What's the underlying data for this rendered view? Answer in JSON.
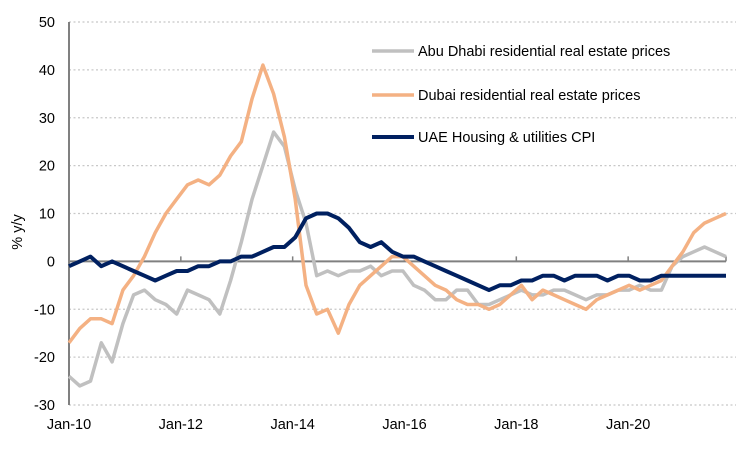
{
  "chart_data": {
    "type": "line",
    "title": "",
    "xlabel": "",
    "ylabel": "% y/y",
    "ylim": [
      -30,
      50
    ],
    "yticks": [
      -30,
      -20,
      -10,
      0,
      10,
      20,
      30,
      40,
      50
    ],
    "xlim": [
      2010.0,
      2021.75
    ],
    "xticks": [
      {
        "value": 2010,
        "label": "Jan-10"
      },
      {
        "value": 2012,
        "label": "Jan-12"
      },
      {
        "value": 2014,
        "label": "Jan-14"
      },
      {
        "value": 2016,
        "label": "Jan-16"
      },
      {
        "value": 2018,
        "label": "Jan-18"
      },
      {
        "value": 2020,
        "label": "Jan-20"
      }
    ],
    "grid": "horizontal-dotted",
    "legend_position": "top-right",
    "x_step_months": 2,
    "x_start": 2010.0,
    "series": [
      {
        "name": "Abu Dhabi residential real estate prices",
        "color": "#c0c0c0",
        "values": [
          -24,
          -26,
          -25,
          -17,
          -21,
          -13,
          -7,
          -6,
          -8,
          -9,
          -11,
          -6,
          -7,
          -8,
          -11,
          -4,
          4,
          13,
          20,
          27,
          24,
          15,
          8,
          -3,
          -2,
          -3,
          -2,
          -2,
          -1,
          -3,
          -2,
          -2,
          -5,
          -6,
          -8,
          -8,
          -6,
          -6,
          -9,
          -9,
          -8,
          -7,
          -6,
          -7,
          -7,
          -6,
          -6,
          -7,
          -8,
          -7,
          -7,
          -6,
          -6,
          -5,
          -6,
          -6,
          -1,
          1,
          2,
          3,
          2,
          1
        ]
      },
      {
        "name": "Dubai residential real estate prices",
        "color": "#f4b183",
        "values": [
          -17,
          -14,
          -12,
          -12,
          -13,
          -6,
          -3,
          1,
          6,
          10,
          13,
          16,
          17,
          16,
          18,
          22,
          25,
          34,
          41,
          35,
          26,
          13,
          -5,
          -11,
          -10,
          -15,
          -9,
          -5,
          -3,
          -1,
          1,
          1,
          -1,
          -3,
          -5,
          -6,
          -8,
          -9,
          -9,
          -10,
          -9,
          -7,
          -5,
          -8,
          -6,
          -7,
          -8,
          -9,
          -10,
          -8,
          -7,
          -6,
          -5,
          -6,
          -5,
          -4,
          -1,
          2,
          6,
          8,
          9,
          10
        ]
      },
      {
        "name": "UAE Housing & utilities CPI",
        "color": "#002060",
        "values": [
          -1,
          0,
          1,
          -1,
          0,
          -1,
          -2,
          -3,
          -4,
          -3,
          -2,
          -2,
          -1,
          -1,
          0,
          0,
          1,
          1,
          2,
          3,
          3,
          5,
          9,
          10,
          10,
          9,
          7,
          4,
          3,
          4,
          2,
          1,
          1,
          0,
          -1,
          -2,
          -3,
          -4,
          -5,
          -6,
          -5,
          -5,
          -4,
          -4,
          -3,
          -3,
          -4,
          -3,
          -3,
          -3,
          -4,
          -3,
          -3,
          -4,
          -4,
          -3,
          -3,
          -3,
          -3,
          -3,
          -3,
          -3
        ]
      }
    ]
  }
}
